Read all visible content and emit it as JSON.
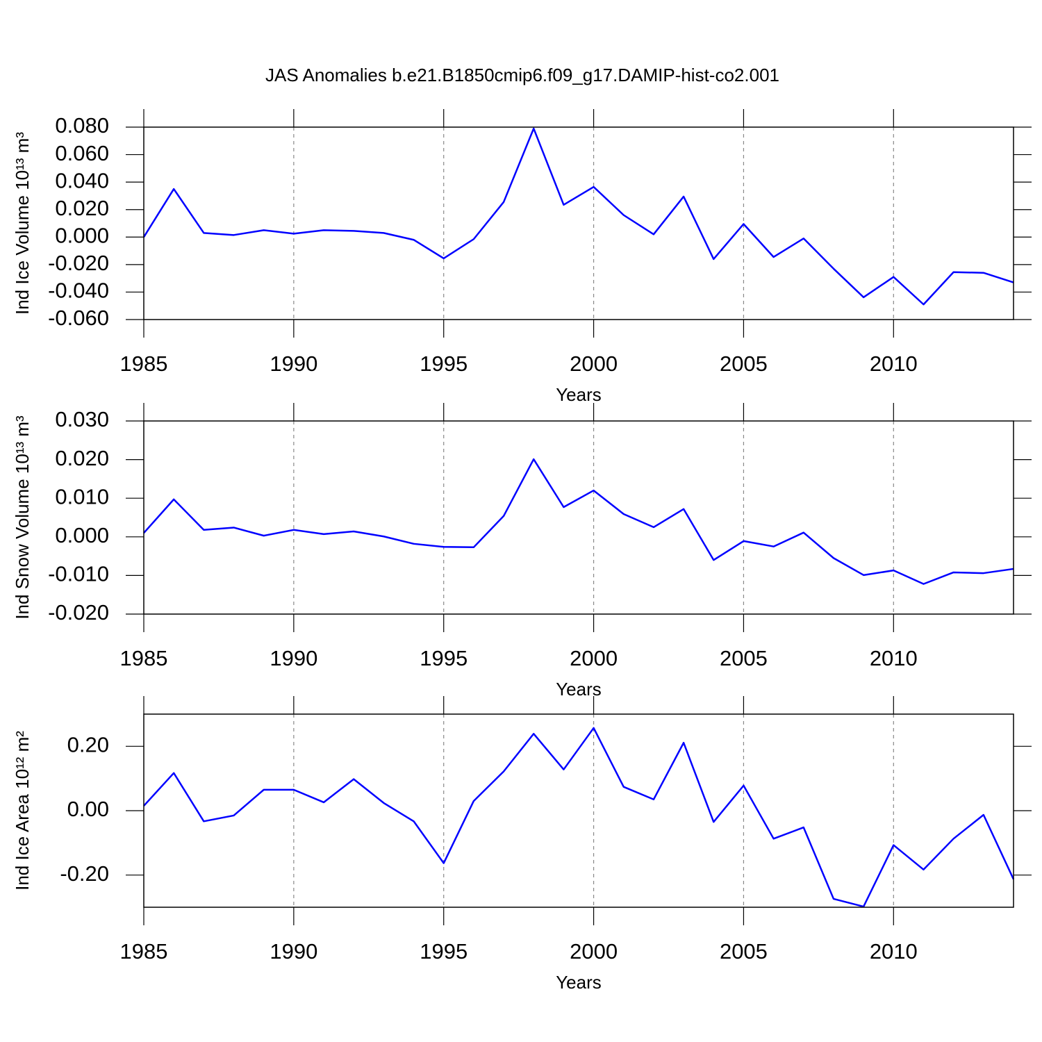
{
  "chart_data": [
    {
      "type": "line",
      "title": "JAS Anomalies b.e21.B1850cmip6.f09_g17.DAMIP-hist-co2.001",
      "ylabel": "Ind Ice Volume 10¹³ m³",
      "xlabel": "Years",
      "color": "#0000ff",
      "xgrid": true,
      "x": [
        1985,
        1986,
        1987,
        1988,
        1989,
        1990,
        1991,
        1992,
        1993,
        1994,
        1995,
        1996,
        1997,
        1998,
        1999,
        2000,
        2001,
        2002,
        2003,
        2004,
        2005,
        2006,
        2007,
        2008,
        2009,
        2010,
        2011,
        2012,
        2013,
        2014
      ],
      "values": [
        0.0,
        0.035,
        0.003,
        0.0015,
        0.005,
        0.0025,
        0.005,
        0.0045,
        0.003,
        -0.002,
        -0.0155,
        -0.0015,
        0.0255,
        0.079,
        0.0235,
        0.0365,
        0.016,
        0.002,
        0.0295,
        -0.016,
        0.0095,
        -0.0145,
        -0.001,
        -0.023,
        -0.0438,
        -0.029,
        -0.049,
        -0.0255,
        -0.026,
        -0.033
      ],
      "xlim": [
        1985,
        2014
      ],
      "xticks": [
        1985,
        1990,
        1995,
        2000,
        2005,
        2010
      ],
      "ylim": [
        -0.06,
        0.08
      ],
      "yticks": [
        {
          "value": -0.06,
          "label": "-0.060"
        },
        {
          "value": -0.04,
          "label": "-0.040"
        },
        {
          "value": -0.02,
          "label": "-0.020"
        },
        {
          "value": 0,
          "label": "0.000"
        },
        {
          "value": 0.02,
          "label": "0.020"
        },
        {
          "value": 0.04,
          "label": "0.040"
        },
        {
          "value": 0.06,
          "label": "0.060"
        },
        {
          "value": 0.08,
          "label": "0.080"
        }
      ]
    },
    {
      "type": "line",
      "ylabel": "Ind Snow Volume 10¹³ m³",
      "xlabel": "Years",
      "color": "#0000ff",
      "xgrid": true,
      "x": [
        1985,
        1986,
        1987,
        1988,
        1989,
        1990,
        1991,
        1992,
        1993,
        1994,
        1995,
        1996,
        1997,
        1998,
        1999,
        2000,
        2001,
        2002,
        2003,
        2004,
        2005,
        2006,
        2007,
        2008,
        2009,
        2010,
        2011,
        2012,
        2013,
        2014
      ],
      "values": [
        0.001,
        0.0097,
        0.0018,
        0.0024,
        0.0003,
        0.0018,
        0.0007,
        0.0014,
        0.0001,
        -0.0018,
        -0.0026,
        -0.0027,
        0.0054,
        0.0201,
        0.0077,
        0.012,
        0.0059,
        0.0025,
        0.0072,
        -0.006,
        -0.0011,
        -0.0025,
        0.0011,
        -0.0055,
        -0.0099,
        -0.0087,
        -0.0122,
        -0.0092,
        -0.0094,
        -0.0083
      ],
      "xlim": [
        1985,
        2014
      ],
      "xticks": [
        1985,
        1990,
        1995,
        2000,
        2005,
        2010
      ],
      "ylim": [
        -0.02,
        0.03
      ],
      "yticks": [
        {
          "value": -0.02,
          "label": "-0.020"
        },
        {
          "value": -0.01,
          "label": "-0.010"
        },
        {
          "value": 0,
          "label": "0.000"
        },
        {
          "value": 0.01,
          "label": "0.010"
        },
        {
          "value": 0.02,
          "label": "0.020"
        },
        {
          "value": 0.03,
          "label": "0.030"
        }
      ]
    },
    {
      "type": "line",
      "ylabel": "Ind Ice Area 10¹² m²",
      "xlabel": "Years",
      "color": "#0000ff",
      "xgrid": true,
      "x": [
        1985,
        1986,
        1987,
        1988,
        1989,
        1990,
        1991,
        1992,
        1993,
        1994,
        1995,
        1996,
        1997,
        1998,
        1999,
        2000,
        2001,
        2002,
        2003,
        2004,
        2005,
        2006,
        2007,
        2008,
        2009,
        2010,
        2011,
        2012,
        2013,
        2014
      ],
      "values": [
        0.015,
        0.117,
        -0.033,
        -0.015,
        0.065,
        0.065,
        0.026,
        0.098,
        0.024,
        -0.033,
        -0.163,
        0.03,
        0.122,
        0.239,
        0.128,
        0.257,
        0.074,
        0.035,
        0.211,
        -0.035,
        0.078,
        -0.087,
        -0.052,
        -0.274,
        -0.298,
        -0.107,
        -0.183,
        -0.087,
        -0.013,
        -0.213
      ],
      "xlim": [
        1985,
        2014
      ],
      "xticks": [
        1985,
        1990,
        1995,
        2000,
        2005,
        2010
      ],
      "ylim": [
        -0.3,
        0.3
      ],
      "yticks": [
        {
          "value": -0.2,
          "label": "-0.20"
        },
        {
          "value": 0,
          "label": "0.00"
        },
        {
          "value": 0.2,
          "label": "0.20"
        }
      ]
    }
  ]
}
